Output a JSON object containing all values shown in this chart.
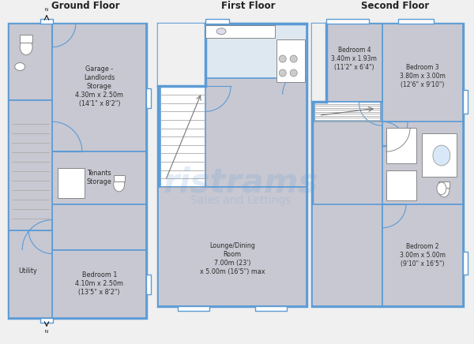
{
  "bg_color": "#f0f0f0",
  "wall_fill": "#c8c8d2",
  "border_color": "#5b9bd5",
  "border_width": 2.5,
  "white_fill": "#ffffff",
  "kitchen_fill": "#dde8f0",
  "title_fontsize": 8.5,
  "label_fontsize": 6.0,
  "small_fontsize": 5.0,
  "ground_title": "Ground Floor",
  "first_title": "First Floor",
  "second_title": "Second Floor",
  "garage_label": [
    "Garage -",
    "Landlords",
    "Storage",
    "4.30m x 2.50m",
    "(14'1\" x 8'2\")"
  ],
  "tenants_label": [
    "Tenants",
    "Storage"
  ],
  "bed1_label": [
    "Bedroom 1",
    "4.10m x 2.50m",
    "(13'5\" x 8'2\")"
  ],
  "utility_label": "Utility",
  "lounge_label": [
    "Lounge/Dining",
    "Room",
    "7.00m (23')",
    "x 5.00m (16'5\") max"
  ],
  "bed2_label": [
    "Bedroom 2",
    "3.00m x 5.00m",
    "(9'10\" x 16'5\")"
  ],
  "bed3_label": [
    "Bedroom 3",
    "3.80m x 3.00m",
    "(12'6\" x 9'10\")"
  ],
  "bed4_label": [
    "Bedroom 4",
    "3.40m x 1.93m",
    "(11'2\" x 6'4\")"
  ]
}
